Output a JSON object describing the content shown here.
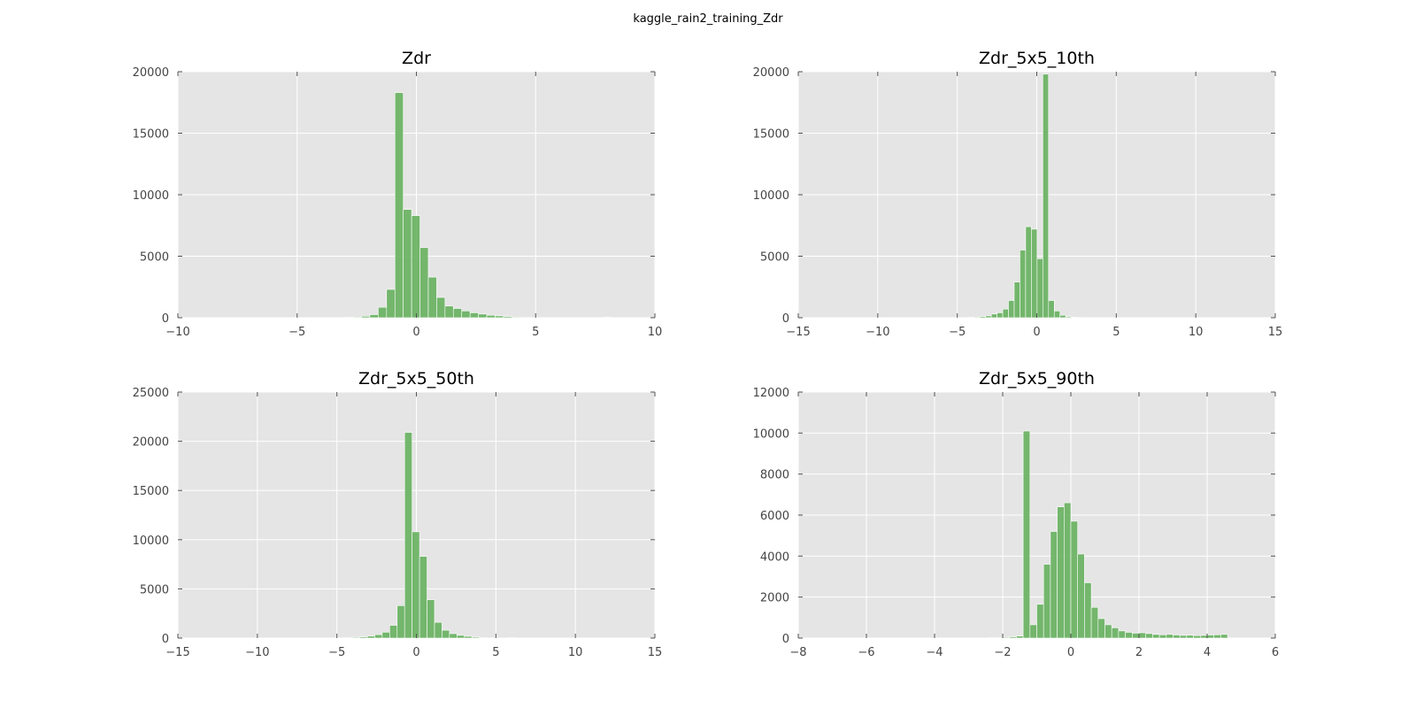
{
  "figure": {
    "title": "kaggle_rain2_training_Zdr"
  },
  "style": {
    "panel_background": "#e5e5e5",
    "grid_color": "#ffffff",
    "bar_color": "#66b05e",
    "tick_color": "#555555"
  },
  "chart_data": [
    {
      "type": "bar",
      "title": "Zdr",
      "xlabel": "",
      "ylabel": "",
      "xlim": [
        -10,
        10
      ],
      "ylim": [
        0,
        20000
      ],
      "xticks": [
        -10,
        -5,
        0,
        5,
        10
      ],
      "yticks": [
        0,
        5000,
        10000,
        15000,
        20000
      ],
      "grid": true,
      "bin_width": 0.35,
      "x": [
        -3.0,
        -2.65,
        -2.3,
        -1.95,
        -1.6,
        -1.25,
        -0.9,
        -0.55,
        -0.2,
        0.15,
        0.5,
        0.85,
        1.2,
        1.55,
        1.9,
        2.25,
        2.6,
        2.95,
        3.3,
        3.65,
        4.0,
        7.85
      ],
      "values": [
        30,
        60,
        120,
        250,
        850,
        2300,
        18300,
        8800,
        8300,
        5700,
        3300,
        1650,
        950,
        750,
        550,
        400,
        300,
        200,
        150,
        100,
        60,
        40
      ]
    },
    {
      "type": "bar",
      "title": "Zdr_5x5_10th",
      "xlabel": "",
      "ylabel": "",
      "xlim": [
        -15,
        15
      ],
      "ylim": [
        0,
        20000
      ],
      "xticks": [
        -15,
        -10,
        -5,
        0,
        5,
        10,
        15
      ],
      "yticks": [
        0,
        5000,
        10000,
        15000,
        20000
      ],
      "grid": true,
      "bin_width": 0.36,
      "x": [
        -4.3,
        -3.94,
        -3.58,
        -3.22,
        -2.86,
        -2.5,
        -2.14,
        -1.78,
        -1.42,
        -1.06,
        -0.7,
        -0.34,
        0.02,
        0.38,
        0.74,
        1.1,
        1.46,
        1.82,
        2.18,
        2.54
      ],
      "values": [
        30,
        60,
        100,
        150,
        300,
        400,
        700,
        1400,
        2900,
        5500,
        7400,
        7200,
        4800,
        19800,
        1400,
        550,
        200,
        80,
        40,
        20
      ]
    },
    {
      "type": "bar",
      "title": "Zdr_5x5_50th",
      "xlabel": "",
      "ylabel": "",
      "xlim": [
        -15,
        15
      ],
      "ylim": [
        0,
        25000
      ],
      "xticks": [
        -15,
        -10,
        -5,
        0,
        5,
        10,
        15
      ],
      "yticks": [
        0,
        5000,
        10000,
        15000,
        20000,
        25000
      ],
      "grid": true,
      "bin_width": 0.47,
      "x": [
        -4.5,
        -4.03,
        -3.56,
        -3.09,
        -2.62,
        -2.15,
        -1.68,
        -1.21,
        -0.74,
        -0.27,
        0.2,
        0.67,
        1.14,
        1.61,
        2.08,
        2.55,
        3.02,
        3.49,
        3.96,
        5.8
      ],
      "values": [
        40,
        80,
        120,
        200,
        350,
        600,
        1300,
        3300,
        20900,
        10800,
        8300,
        3900,
        1600,
        800,
        450,
        280,
        180,
        100,
        60,
        40
      ]
    },
    {
      "type": "bar",
      "title": "Zdr_5x5_90th",
      "xlabel": "",
      "ylabel": "",
      "xlim": [
        -8,
        6
      ],
      "ylim": [
        0,
        12000
      ],
      "xticks": [
        -8,
        -6,
        -4,
        -2,
        0,
        2,
        4,
        6
      ],
      "yticks": [
        0,
        2000,
        4000,
        6000,
        8000,
        10000,
        12000
      ],
      "grid": true,
      "bin_width": 0.2,
      "x": [
        -2.6,
        -2.4,
        -2.2,
        -2.0,
        -1.8,
        -1.6,
        -1.4,
        -1.2,
        -1.0,
        -0.8,
        -0.6,
        -0.4,
        -0.2,
        0.0,
        0.2,
        0.4,
        0.6,
        0.8,
        1.0,
        1.2,
        1.4,
        1.6,
        1.8,
        2.0,
        2.2,
        2.4,
        2.6,
        2.8,
        3.0,
        3.2,
        3.4,
        3.6,
        3.8,
        4.0,
        4.2,
        4.4
      ],
      "values": [
        10,
        20,
        30,
        40,
        60,
        100,
        10100,
        650,
        1650,
        3600,
        5200,
        6400,
        6600,
        5700,
        4100,
        2700,
        1500,
        950,
        650,
        500,
        350,
        280,
        240,
        260,
        220,
        180,
        160,
        180,
        150,
        130,
        140,
        120,
        130,
        150,
        160,
        180
      ]
    }
  ]
}
